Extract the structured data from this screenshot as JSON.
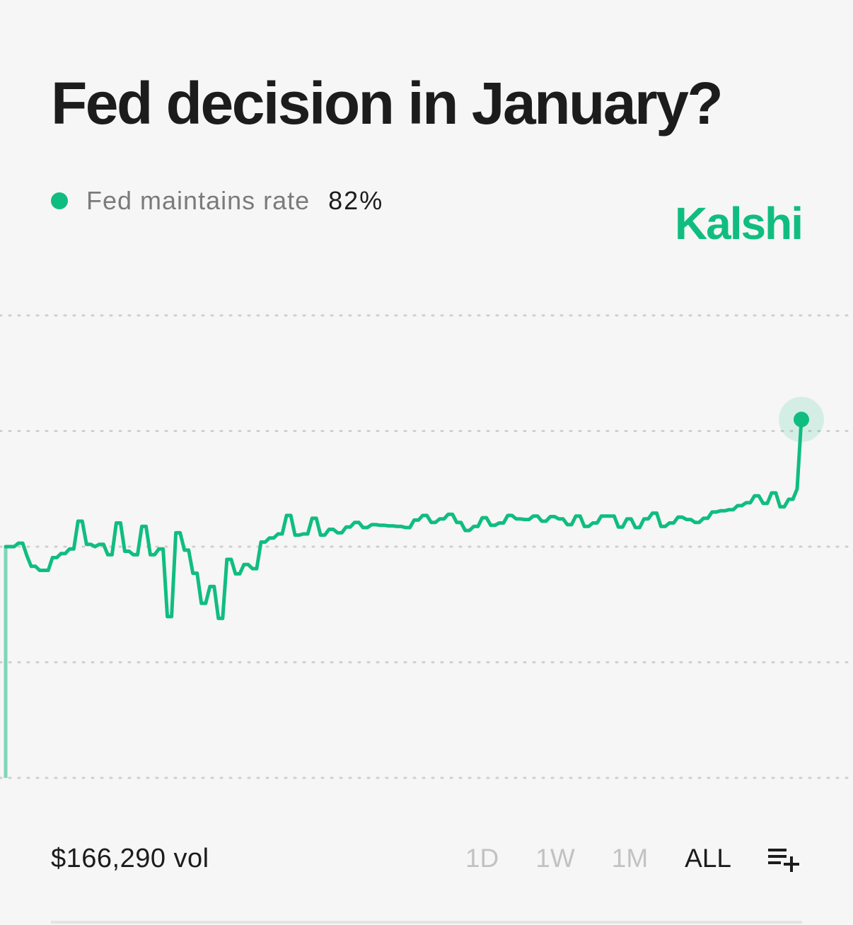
{
  "header": {
    "title": "Fed decision in January?",
    "brand": "Kalshi"
  },
  "legend": {
    "label": "Fed maintains rate",
    "value": "82%"
  },
  "colors": {
    "accent": "#10bd80",
    "accent_faded": "#7fd6b6",
    "grid": "#cfcfcf"
  },
  "footer": {
    "volume": "$166,290 vol",
    "ranges": [
      "1D",
      "1W",
      "1M",
      "ALL"
    ],
    "active_range": "ALL",
    "filter_icon": "list-add-icon"
  },
  "chart_data": {
    "type": "line",
    "step": true,
    "title": "Fed decision in January?",
    "series": [
      {
        "name": "Fed maintains rate",
        "last_value": 82,
        "x": [
          0,
          1,
          2,
          3,
          4,
          5,
          6,
          7,
          8,
          9,
          10,
          11,
          12,
          13,
          14,
          15,
          16,
          17,
          18,
          19,
          20,
          21,
          22,
          23,
          24,
          25,
          26,
          27,
          28,
          29,
          30,
          31,
          32,
          33,
          34,
          35,
          36,
          37,
          38,
          39,
          40,
          41,
          42,
          43,
          44,
          45,
          46,
          47,
          48,
          49,
          50,
          51,
          52,
          53,
          54,
          55,
          56,
          57,
          58,
          59,
          60,
          61,
          62,
          63,
          64,
          65,
          66,
          67,
          68,
          69,
          70,
          71,
          72,
          73,
          74,
          75,
          76,
          77,
          78,
          79,
          80,
          81,
          82,
          83,
          84,
          85,
          86,
          87,
          88,
          89,
          90,
          91,
          92,
          93,
          94,
          95,
          96,
          97,
          98,
          99,
          100,
          101,
          102,
          103,
          104,
          105,
          106,
          107,
          108,
          109,
          110,
          111,
          112,
          113,
          114,
          115,
          116,
          117,
          118,
          119,
          120,
          121,
          122,
          123,
          124,
          125,
          126,
          127,
          128,
          129,
          130,
          131,
          132,
          133,
          134,
          135,
          136,
          137,
          138,
          139,
          140,
          141,
          142,
          143,
          144,
          145,
          146,
          147,
          148,
          149,
          150,
          151,
          152,
          153,
          154,
          155,
          156,
          157,
          158,
          159,
          160,
          161,
          162,
          163,
          164,
          165,
          166,
          167,
          168,
          169,
          170,
          171,
          172,
          173,
          174,
          175,
          176,
          177,
          178,
          179,
          180,
          181,
          182,
          183,
          184,
          185,
          186,
          187
        ],
        "values": [
          20,
          60,
          60,
          60.6,
          60.6,
          58.4,
          56.6,
          56.6,
          55.9,
          55.9,
          55.9,
          58.1,
          58.1,
          58.8,
          58.8,
          59.6,
          59.6,
          64.4,
          64.4,
          60.4,
          60.4,
          60,
          60.4,
          60.4,
          58.6,
          58.6,
          64.1,
          64.1,
          59.2,
          59.2,
          58.6,
          58.6,
          63.5,
          63.5,
          58.6,
          58.6,
          59.6,
          59.6,
          47.9,
          47.9,
          62.4,
          62.4,
          59.4,
          59.4,
          55.4,
          55.4,
          50.2,
          50.2,
          53.1,
          53.1,
          47.6,
          47.6,
          57.8,
          57.8,
          55.3,
          55.3,
          56.9,
          56.9,
          56.2,
          56.2,
          60.8,
          60.8,
          61.5,
          61.5,
          62.2,
          62.2,
          65.4,
          65.4,
          62,
          62,
          62.2,
          62.2,
          64.9,
          64.9,
          62,
          62,
          63,
          63,
          62.4,
          62.4,
          63.4,
          63.4,
          64.2,
          64.2,
          63.3,
          63.3,
          63.8,
          63.8,
          63.7,
          63.7,
          63.6,
          63.6,
          63.5,
          63.5,
          63.3,
          63.3,
          64.6,
          64.6,
          65.4,
          65.4,
          64.2,
          64.2,
          64.8,
          64.8,
          65.6,
          65.6,
          64.2,
          64.2,
          62.8,
          62.8,
          63.5,
          63.5,
          65,
          65,
          63.7,
          63.7,
          64.1,
          64.1,
          65.4,
          65.4,
          64.8,
          64.8,
          64.7,
          64.7,
          65.3,
          65.3,
          64.4,
          64.4,
          65.2,
          65.2,
          64.8,
          64.8,
          63.8,
          63.8,
          65.3,
          65.3,
          63.5,
          63.5,
          64.1,
          64.1,
          65.3,
          65.3,
          65.3,
          65.3,
          63.4,
          63.4,
          64.8,
          64.8,
          63.3,
          63.3,
          64.8,
          64.8,
          65.8,
          65.8,
          63.5,
          63.5,
          64.1,
          64.1,
          65.1,
          65.1,
          64.7,
          64.7,
          64.2,
          64.2,
          64.9,
          64.9,
          66,
          66,
          66.2,
          66.2,
          66.4,
          66.4,
          67.1,
          67.1,
          67.6,
          67.6,
          68.8,
          68.8,
          67.5,
          67.5,
          69.3,
          69.3,
          66.9,
          66.9,
          68.2,
          68.2,
          70,
          82
        ]
      }
    ],
    "ylim": [
      20,
      100
    ],
    "y_gridlines": [
      20,
      40,
      60,
      80,
      100
    ],
    "grid": true,
    "x_axis_visible": false,
    "y_axis_visible": false,
    "legend_position": "top-left"
  }
}
